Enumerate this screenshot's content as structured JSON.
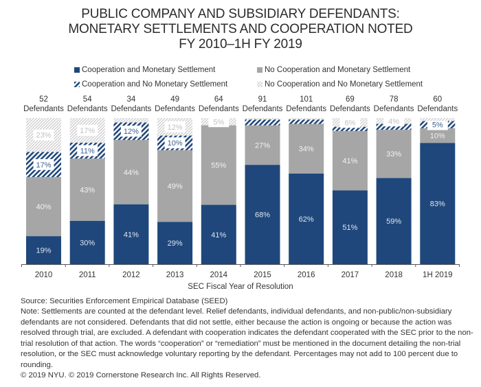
{
  "title_lines": [
    "PUBLIC COMPANY AND SUBSIDIARY DEFENDANTS:",
    "MONETARY SETTLEMENTS AND COOPERATION NOTED",
    "FY 2010–1H FY 2019"
  ],
  "legend": [
    {
      "label": "Cooperation and Monetary Settlement",
      "style": "solid-blue"
    },
    {
      "label": "No Cooperation and Monetary Settlement",
      "style": "solid-gray"
    },
    {
      "label": "Cooperation and No Monetary Settlement",
      "style": "hatch-blue"
    },
    {
      "label": "No Cooperation and No Monetary Settlement",
      "style": "hatch-gray"
    }
  ],
  "colors": {
    "blue": "#1f477b",
    "gray": "#a6a6a6",
    "hatch_gray": "#c8c8c8",
    "label_light": "#e6e6e6",
    "label_blue": "#3b5f94"
  },
  "chart_data": {
    "type": "bar",
    "stacked": true,
    "title": "PUBLIC COMPANY AND SUBSIDIARY DEFENDANTS: MONETARY SETTLEMENTS AND COOPERATION NOTED FY 2010–1H FY 2019",
    "xlabel": "SEC Fiscal Year of Resolution",
    "ylabel": "",
    "ylim": [
      0,
      100
    ],
    "unit": "%",
    "categories": [
      "2010",
      "2011",
      "2012",
      "2013",
      "2014",
      "2015",
      "2016",
      "2017",
      "2018",
      "1H 2019"
    ],
    "defendant_counts": [
      "52",
      "54",
      "34",
      "49",
      "64",
      "91",
      "101",
      "69",
      "78",
      "60"
    ],
    "defendants_word": "Defendants",
    "series": [
      {
        "name": "Cooperation and Monetary Settlement",
        "values": [
          19,
          30,
          41,
          29,
          41,
          68,
          62,
          51,
          59,
          83
        ],
        "labels": [
          "19%",
          "30%",
          "41%",
          "29%",
          "41%",
          "68%",
          "62%",
          "51%",
          "59%",
          "83%"
        ]
      },
      {
        "name": "No Cooperation and Monetary Settlement",
        "values": [
          40,
          43,
          44,
          49,
          55,
          27,
          34,
          41,
          33,
          10
        ],
        "labels": [
          "40%",
          "43%",
          "44%",
          "49%",
          "55%",
          "27%",
          "34%",
          "41%",
          "33%",
          "10%"
        ]
      },
      {
        "name": "Cooperation and No Monetary Settlement",
        "values": [
          17,
          11,
          12,
          10,
          0,
          4,
          3,
          3,
          4,
          5
        ],
        "labels": [
          "17%",
          "11%",
          "12%",
          "10%",
          "",
          "",
          "",
          "",
          "",
          "5%"
        ]
      },
      {
        "name": "No Cooperation and No Monetary Settlement",
        "values": [
          23,
          17,
          3,
          12,
          5,
          1,
          1,
          6,
          4,
          2
        ],
        "labels": [
          "23%",
          "17%",
          "",
          "12%",
          "5%",
          "",
          "",
          "6%",
          "4%",
          ""
        ]
      }
    ],
    "grid": false,
    "legend_position": "top"
  },
  "footer": {
    "source": "Source:  Securities Enforcement Empirical Database (SEED)",
    "note": "Note:  Settlements are counted at the defendant level. Relief defendants, individual defendants, and non-public/non-subsidiary defendants are not considered.  Defendants that did not settle, either because the action is ongoing or because the action was resolved through trial, are excluded. A defendant with cooperation indicates the defendant cooperated with the SEC prior to the non-trial resolution of that action. The words “cooperation” or “remediation” must be mentioned in the document detailing the non-trial resolution, or the SEC must acknowledge voluntary reporting by the defendant. Percentages may not add to 100 percent due to rounding.",
    "copyright": "© 2019 NYU. © 2019 Cornerstone Research Inc. All Rights Reserved."
  }
}
